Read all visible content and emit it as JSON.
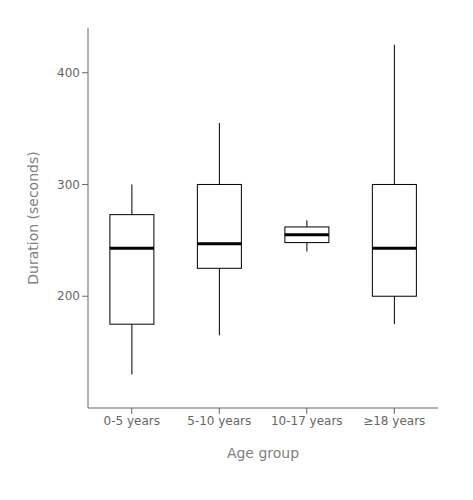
{
  "chart_data": {
    "type": "box",
    "categories": [
      "0-5 years",
      "5-10 years",
      "10-17 years",
      "≥18 years"
    ],
    "boxes": [
      {
        "whislo": 130,
        "q1": 175,
        "med": 243,
        "q3": 273,
        "whishi": 300
      },
      {
        "whislo": 165,
        "q1": 225,
        "med": 247,
        "q3": 300,
        "whishi": 355
      },
      {
        "whislo": 240,
        "q1": 248,
        "med": 255,
        "q3": 262,
        "whishi": 268
      },
      {
        "whislo": 175,
        "q1": 200,
        "med": 243,
        "q3": 300,
        "whishi": 425
      }
    ],
    "xlabel": "Age group",
    "ylabel": "Duration (seconds)",
    "ylim": [
      100,
      440
    ],
    "yticks": [
      200,
      300,
      400
    ],
    "grid": false,
    "color": "#000000"
  }
}
